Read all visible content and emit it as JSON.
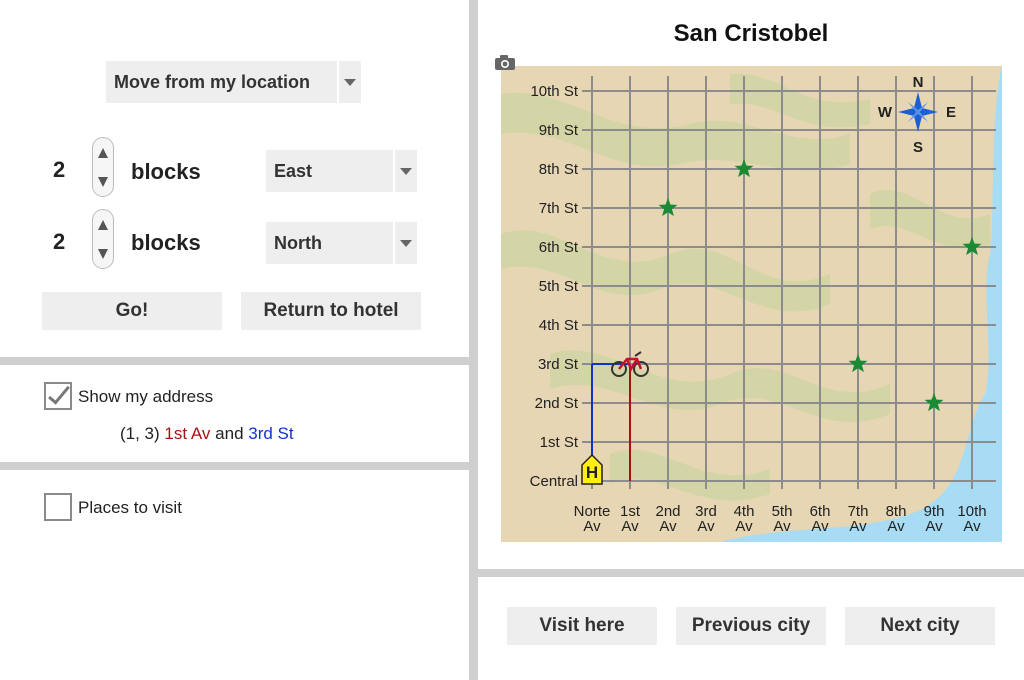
{
  "controls": {
    "mode_select": "Move from my location",
    "move1": {
      "count": "2",
      "unit": "blocks",
      "direction": "East"
    },
    "move2": {
      "count": "2",
      "unit": "blocks",
      "direction": "North"
    },
    "go_label": "Go!",
    "return_label": "Return to hotel"
  },
  "address": {
    "show_label": "Show my address",
    "show_checked": true,
    "coords": "(1, 3)",
    "avenue": "1st Av",
    "and": "and",
    "street": "3rd St"
  },
  "places": {
    "label": "Places to visit",
    "checked": false
  },
  "city": {
    "title": "San Cristobel"
  },
  "map": {
    "streets": [
      "Central",
      "1st St",
      "2nd St",
      "3rd St",
      "4th St",
      "5th St",
      "6th St",
      "7th St",
      "8th St",
      "9th St",
      "10th St"
    ],
    "avenues": [
      [
        "Norte",
        "Av"
      ],
      [
        "1st",
        "Av"
      ],
      [
        "2nd",
        "Av"
      ],
      [
        "3rd",
        "Av"
      ],
      [
        "4th",
        "Av"
      ],
      [
        "5th",
        "Av"
      ],
      [
        "6th",
        "Av"
      ],
      [
        "7th",
        "Av"
      ],
      [
        "8th",
        "Av"
      ],
      [
        "9th",
        "Av"
      ],
      [
        "10th",
        "Av"
      ]
    ],
    "compass": {
      "n": "N",
      "s": "S",
      "e": "E",
      "w": "W"
    },
    "hotel_label": "H",
    "hotel": [
      0,
      0
    ],
    "bike": [
      1,
      3
    ],
    "stars": [
      [
        2,
        7
      ],
      [
        4,
        8
      ],
      [
        10,
        6
      ],
      [
        7,
        3
      ],
      [
        9,
        2
      ]
    ],
    "colors": {
      "land": "#e6d6b4",
      "stripe": "#d4d5a6",
      "water": "#a8dcf4",
      "grid": "#8c8c8c",
      "star": "#1a8a35",
      "avenue_path": "#aa1111",
      "street_path": "#1133cc",
      "hotel": "#ffee11"
    }
  },
  "bottom": {
    "visit_label": "Visit here",
    "prev_label": "Previous city",
    "next_label": "Next city"
  }
}
